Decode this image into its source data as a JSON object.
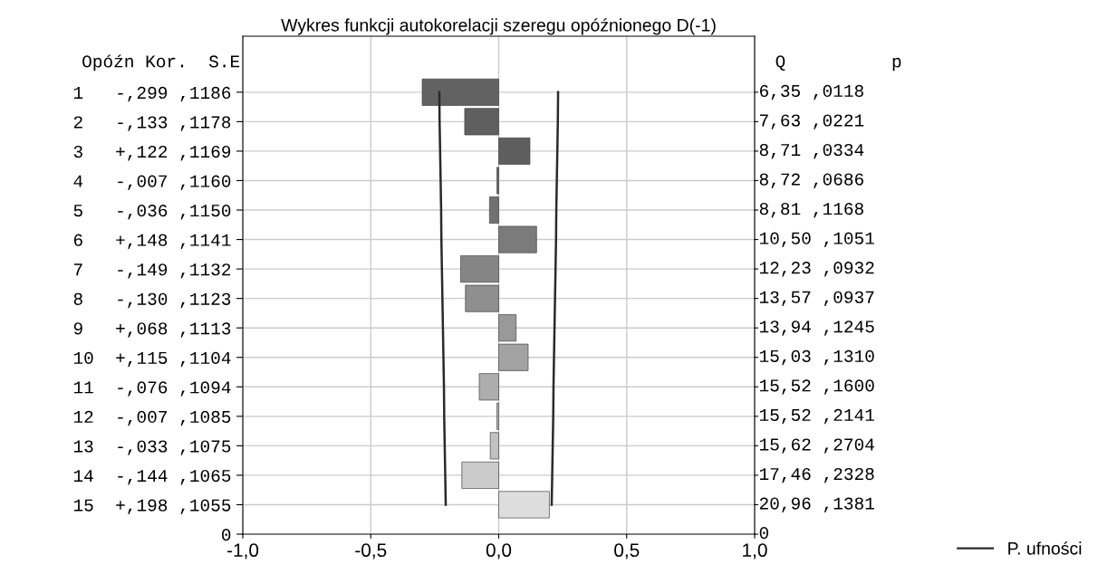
{
  "chart_data": {
    "type": "bar",
    "orientation": "horizontal",
    "title": "Wykres funkcji autokorelacji szeregu opóźnionego D(-1)",
    "categories": [
      "1   -,299 ,1186",
      "2   -,133 ,1178",
      "3   +,122 ,1169",
      "4   -,007 ,1160",
      "5   -,036 ,1150",
      "6   +,148 ,1141",
      "7   -,149 ,1132",
      "8   -,130 ,1123",
      "9   +,068 ,1113",
      "10  +,115 ,1104",
      "11  -,076 ,1094",
      "12  -,007 ,1085",
      "13  -,033 ,1075",
      "14  -,144 ,1065",
      "15  +,198 ,1055",
      "0"
    ],
    "series": [
      {
        "type": "bar",
        "values": [
          -0.299,
          -0.133,
          0.122,
          -0.007,
          -0.036,
          0.148,
          -0.149,
          -0.13,
          0.068,
          0.115,
          -0.076,
          -0.007,
          -0.033,
          -0.144,
          0.198,
          null
        ],
        "colors": [
          "#626262",
          "#5f5f5f",
          "#5e5e5e",
          "#676767",
          "#717171",
          "#7b7b7b",
          "#858585",
          "#8f8f8f",
          "#999999",
          "#a3a3a3",
          "#adadad",
          "#b7b7b7",
          "#c1c1c1",
          "#cbcbcb",
          "#dddddd",
          "#dddddd"
        ]
      },
      {
        "type": "line",
        "name": "P. ufności",
        "color": "#2a2a2a",
        "values": [
          -0.232,
          -0.231,
          -0.229,
          -0.227,
          -0.225,
          -0.224,
          -0.222,
          -0.22,
          -0.218,
          -0.216,
          -0.214,
          -0.213,
          -0.211,
          -0.209,
          -0.207,
          null
        ]
      },
      {
        "type": "line",
        "color": "#2a2a2a",
        "values": [
          0.232,
          0.231,
          0.229,
          0.227,
          0.225,
          0.224,
          0.222,
          0.22,
          0.218,
          0.216,
          0.214,
          0.213,
          0.211,
          0.209,
          0.207,
          null
        ]
      }
    ],
    "annotations": [
      "Opóźn Kor.  S.E",
      "Q          p",
      "6,35 ,0118",
      "7,63 ,0221",
      "8,71 ,0334",
      "8,72 ,0686",
      "8,81 ,1168",
      "10,50 ,1051",
      "12,23 ,0932",
      "13,57 ,0937",
      "13,94 ,1245",
      "15,03 ,1310",
      "15,52 ,1600",
      "15,52 ,2141",
      "15,62 ,2704",
      "17,46 ,2328",
      "20,96 ,1381",
      "0"
    ],
    "xlim": [
      -1,
      1
    ],
    "xticks": [
      {
        "value": -1,
        "label": "-1,0"
      },
      {
        "value": -0.5,
        "label": "-0,5"
      },
      {
        "value": 0,
        "label": "0,0"
      },
      {
        "value": 0.5,
        "label": "0,5"
      },
      {
        "value": 1,
        "label": "1,0"
      }
    ],
    "grid": true,
    "legend": "bottom right"
  }
}
